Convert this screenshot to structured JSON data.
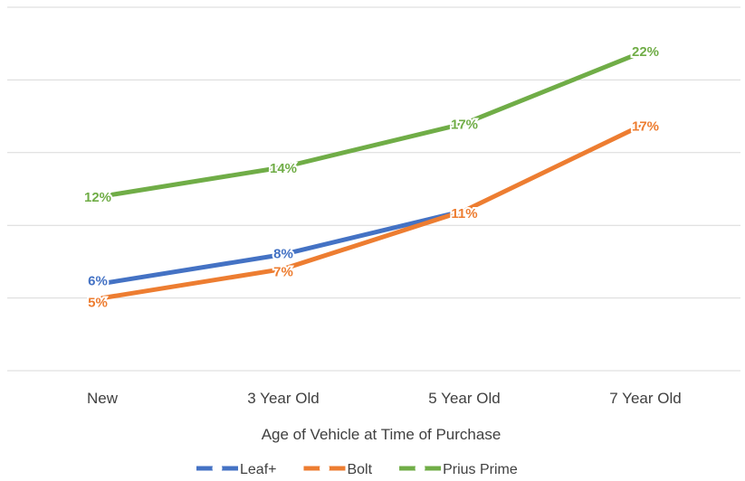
{
  "chart_data": {
    "type": "line",
    "categories": [
      "New",
      "3 Year Old",
      "5 Year Old",
      "7 Year Old"
    ],
    "xlabel": "Age of Vehicle at Time of Purchase",
    "ylabel": "",
    "ylim": [
      0,
      25
    ],
    "grid": true,
    "legend_position": "bottom",
    "series": [
      {
        "name": "Leaf+",
        "color": "#4472C4",
        "values": [
          6,
          8,
          11,
          null
        ],
        "labels": [
          "6%",
          "8%",
          null,
          null
        ]
      },
      {
        "name": "Bolt",
        "color": "#ED7D31",
        "values": [
          5,
          7,
          11,
          17
        ],
        "labels": [
          "5%",
          "7%",
          "11%",
          "17%"
        ]
      },
      {
        "name": "Prius Prime",
        "color": "#70AD47",
        "values": [
          12,
          14,
          17,
          22
        ],
        "labels": [
          "12%",
          "14%",
          "17%",
          "22%"
        ]
      }
    ]
  }
}
